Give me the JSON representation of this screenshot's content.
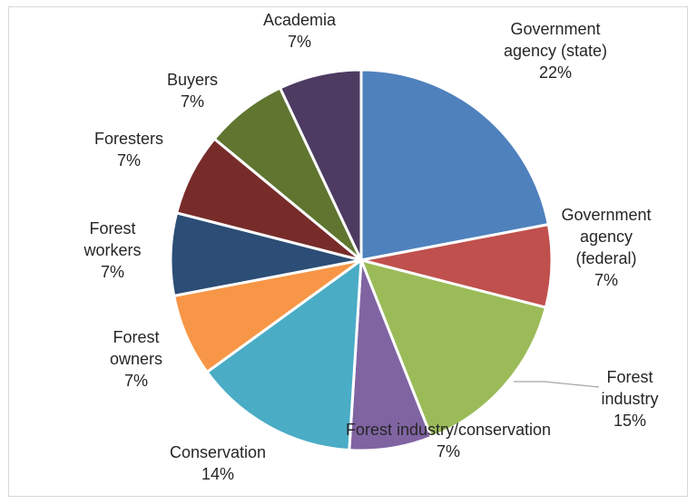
{
  "chart_data": {
    "type": "pie",
    "title": "",
    "legend": "none",
    "slices": [
      {
        "lines": [
          "Government",
          "agency (state)",
          "22%"
        ],
        "value": 22,
        "color": "#4F81BD"
      },
      {
        "lines": [
          "Government",
          "agency",
          "(federal)",
          "7%"
        ],
        "value": 7,
        "color": "#C0504D"
      },
      {
        "lines": [
          "Forest",
          "industry",
          "15%"
        ],
        "value": 15,
        "color": "#9BBB59"
      },
      {
        "lines": [
          "Forest industry/conservation",
          "7%"
        ],
        "value": 7,
        "color": "#8064A2"
      },
      {
        "lines": [
          "Conservation",
          "14%"
        ],
        "value": 14,
        "color": "#4BACC6"
      },
      {
        "lines": [
          "Forest",
          "owners",
          "7%"
        ],
        "value": 7,
        "color": "#F79646"
      },
      {
        "lines": [
          "Forest",
          "workers",
          "7%"
        ],
        "value": 7,
        "color": "#2C4D75"
      },
      {
        "lines": [
          "Foresters",
          "7%"
        ],
        "value": 7,
        "color": "#772C2A"
      },
      {
        "lines": [
          "Buyers",
          "7%"
        ],
        "value": 7,
        "color": "#5F7530"
      },
      {
        "lines": [
          "Academia",
          "7%"
        ],
        "value": 7,
        "color": "#4D3B62"
      }
    ]
  }
}
